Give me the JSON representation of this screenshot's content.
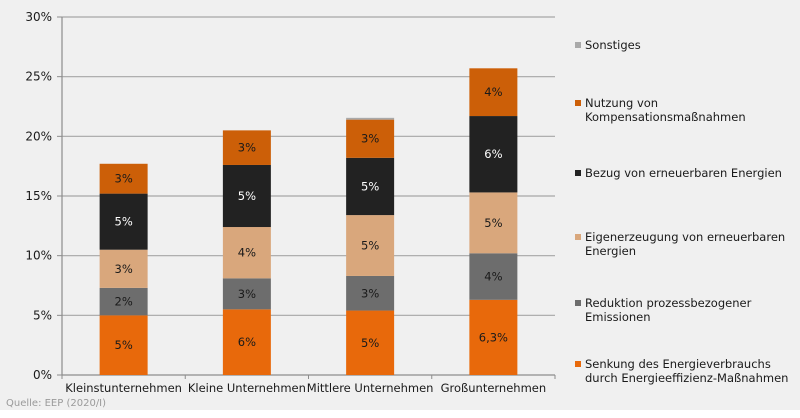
{
  "chart_data": {
    "type": "bar",
    "stacked": true,
    "title": "",
    "xlabel": "",
    "ylabel": "",
    "ylim": [
      0,
      30
    ],
    "y_ticks": [
      0,
      5,
      10,
      15,
      20,
      25,
      30
    ],
    "y_tick_labels": [
      "0%",
      "5%",
      "10%",
      "15%",
      "20%",
      "25%",
      "30%"
    ],
    "grid": true,
    "legend_position": "right",
    "categories": [
      "Kleinstunternehmen",
      "Kleine Unternehmen",
      "Mittlere Unternehmen",
      "Großunternehmen"
    ],
    "series": [
      {
        "name": "Senkung des Energieverbrauchs durch Energieeffizienz-Maßnahmen",
        "legend_lines": [
          "Senkung des Energieverbrauchs",
          "durch Energieeffizienz-Maßnahmen"
        ],
        "color": "#e8690b",
        "label_color": "#1a1a1a",
        "values": [
          5.0,
          5.5,
          5.4,
          6.3
        ],
        "labels": [
          "5%",
          "6%",
          "5%",
          "6,3%"
        ]
      },
      {
        "name": "Reduktion prozessbezogener Emissionen",
        "legend_lines": [
          "Reduktion prozessbezogener",
          "Emissionen"
        ],
        "color": "#6d6d6d",
        "label_color": "#1a1a1a",
        "values": [
          2.3,
          2.6,
          2.9,
          3.9
        ],
        "labels": [
          "2%",
          "3%",
          "3%",
          "4%"
        ]
      },
      {
        "name": "Eigenerzeugung von erneuerbaren Energien",
        "legend_lines": [
          "Eigenerzeugung von erneuerbaren",
          "Energien"
        ],
        "color": "#d9a77c",
        "label_color": "#1a1a1a",
        "values": [
          3.2,
          4.3,
          5.1,
          5.1
        ],
        "labels": [
          "3%",
          "4%",
          "5%",
          "5%"
        ]
      },
      {
        "name": "Bezug von erneuerbaren Energien",
        "legend_lines": [
          "Bezug von erneuerbaren Energien"
        ],
        "color": "#222222",
        "label_color": "#ffffff",
        "values": [
          4.7,
          5.2,
          4.8,
          6.4
        ],
        "labels": [
          "5%",
          "5%",
          "5%",
          "6%"
        ]
      },
      {
        "name": "Nutzung von Kompensationsmaßnahmen",
        "legend_lines": [
          "Nutzung von",
          "Kompensationsmaßnahmen"
        ],
        "color": "#cc5f08",
        "label_color": "#1a1a1a",
        "values": [
          2.5,
          2.9,
          3.2,
          4.0
        ],
        "labels": [
          "3%",
          "3%",
          "3%",
          "4%"
        ]
      },
      {
        "name": "Sonstiges",
        "legend_lines": [
          "Sonstiges"
        ],
        "color": "#a9a9a9",
        "label_color": "#1a1a1a",
        "values": [
          0.0,
          0.0,
          0.15,
          0.0
        ],
        "labels": [
          "",
          "",
          "",
          ""
        ]
      }
    ],
    "source": "Quelle: EEP (2020/I)"
  }
}
